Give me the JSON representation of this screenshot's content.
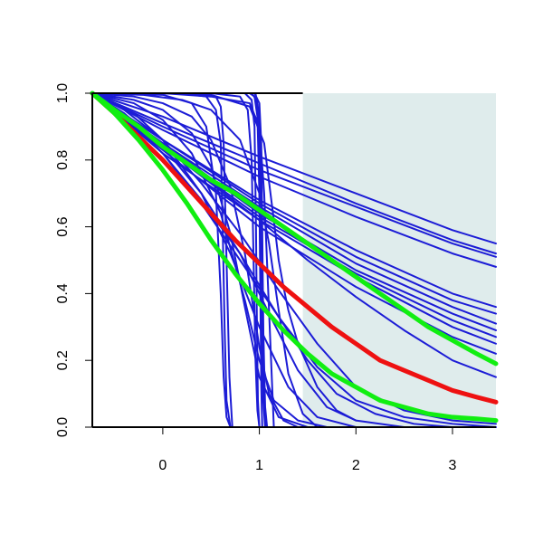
{
  "chart_data": {
    "type": "line",
    "title": "",
    "xlabel": "",
    "ylabel": "",
    "xlim": [
      -0.73,
      3.45
    ],
    "ylim": [
      0,
      1
    ],
    "x_ticks": [
      0,
      1,
      2,
      3
    ],
    "x_tick_labels": [
      "0",
      "1",
      "2",
      "3"
    ],
    "y_ticks": [
      0,
      0.2,
      0.4,
      0.6,
      0.8,
      1
    ],
    "y_tick_labels": [
      "0.0",
      "0.2",
      "0.4",
      "0.6",
      "0.8",
      "1.0"
    ],
    "grid": false,
    "legend": "none",
    "shaded_region": {
      "x": [
        1.45,
        3.45
      ],
      "y": [
        0,
        1
      ],
      "color": "#dfecec"
    },
    "colors": {
      "sample": "#1c1cd6",
      "summary": "#ee1111",
      "band": "#11ee11",
      "axis": "#000000"
    },
    "series": [
      {
        "role": "sample",
        "x": [
          -0.73,
          0.0,
          1.0,
          2.0,
          3.0,
          3.45
        ],
        "y": [
          1.0,
          0.93,
          0.81,
          0.7,
          0.59,
          0.55
        ]
      },
      {
        "role": "sample",
        "x": [
          -0.73,
          0.0,
          1.0,
          2.0,
          3.0,
          3.45
        ],
        "y": [
          1.0,
          0.91,
          0.79,
          0.67,
          0.56,
          0.52
        ]
      },
      {
        "role": "sample",
        "x": [
          -0.73,
          0.0,
          1.0,
          2.0,
          3.0,
          3.45
        ],
        "y": [
          1.0,
          0.9,
          0.77,
          0.66,
          0.55,
          0.51
        ]
      },
      {
        "role": "sample",
        "x": [
          -0.73,
          0.0,
          1.0,
          2.0,
          3.0,
          3.45
        ],
        "y": [
          1.0,
          0.89,
          0.75,
          0.63,
          0.52,
          0.48
        ]
      },
      {
        "role": "sample",
        "x": [
          -0.73,
          0.0,
          1.0,
          2.0,
          3.0,
          3.45
        ],
        "y": [
          1.0,
          0.86,
          0.68,
          0.53,
          0.4,
          0.36
        ]
      },
      {
        "role": "sample",
        "x": [
          -0.73,
          0.0,
          1.0,
          2.0,
          3.0,
          3.45
        ],
        "y": [
          1.0,
          0.86,
          0.67,
          0.51,
          0.38,
          0.34
        ]
      },
      {
        "role": "sample",
        "x": [
          -0.73,
          0.0,
          1.0,
          2.0,
          3.0,
          3.45
        ],
        "y": [
          1.0,
          0.85,
          0.66,
          0.49,
          0.36,
          0.31
        ]
      },
      {
        "role": "sample",
        "x": [
          -0.73,
          0.0,
          1.0,
          2.0,
          3.0,
          3.45
        ],
        "y": [
          1.0,
          0.85,
          0.64,
          0.47,
          0.34,
          0.29
        ]
      },
      {
        "role": "sample",
        "x": [
          -0.73,
          0.0,
          1.0,
          2.0,
          3.0,
          3.45
        ],
        "y": [
          1.0,
          0.84,
          0.63,
          0.46,
          0.32,
          0.27
        ]
      },
      {
        "role": "sample",
        "x": [
          -0.73,
          0.0,
          1.0,
          2.0,
          3.0,
          3.45
        ],
        "y": [
          1.0,
          0.84,
          0.62,
          0.45,
          0.3,
          0.25
        ]
      },
      {
        "role": "sample",
        "x": [
          -0.73,
          0.0,
          1.0,
          2.0,
          3.0,
          3.45
        ],
        "y": [
          1.0,
          0.83,
          0.6,
          0.42,
          0.27,
          0.22
        ]
      },
      {
        "role": "sample",
        "x": [
          -0.73,
          0.0,
          0.5,
          1.0,
          1.5,
          2.0,
          2.5,
          3.0,
          3.45
        ],
        "y": [
          1.0,
          0.82,
          0.72,
          0.62,
          0.5,
          0.39,
          0.29,
          0.2,
          0.15
        ]
      },
      {
        "role": "sample",
        "x": [
          -0.73,
          -0.4,
          0.0,
          0.4,
          0.8,
          1.2,
          1.6,
          2.0,
          2.5,
          3.0,
          3.45
        ],
        "y": [
          1.0,
          0.95,
          0.86,
          0.73,
          0.58,
          0.41,
          0.25,
          0.12,
          0.05,
          0.02,
          0.01
        ]
      },
      {
        "role": "sample",
        "x": [
          -0.73,
          -0.4,
          0.0,
          0.4,
          0.8,
          1.2,
          1.6,
          2.0,
          2.5,
          3.0,
          3.45
        ],
        "y": [
          1.0,
          0.93,
          0.82,
          0.67,
          0.5,
          0.33,
          0.18,
          0.08,
          0.03,
          0.01,
          0.0
        ]
      },
      {
        "role": "sample",
        "x": [
          -0.73,
          -0.4,
          0.0,
          0.4,
          0.8,
          1.2,
          1.5,
          1.8,
          2.2,
          2.6,
          3.0
        ],
        "y": [
          1.0,
          0.93,
          0.82,
          0.68,
          0.52,
          0.33,
          0.2,
          0.1,
          0.04,
          0.01,
          0.0
        ]
      },
      {
        "role": "sample",
        "x": [
          -0.73,
          -0.4,
          0.0,
          0.4,
          0.8,
          1.1,
          1.4,
          1.7,
          2.0,
          2.5
        ],
        "y": [
          1.0,
          0.94,
          0.84,
          0.7,
          0.52,
          0.34,
          0.17,
          0.06,
          0.02,
          0.0
        ]
      },
      {
        "role": "sample",
        "x": [
          -0.73,
          -0.3,
          0.0,
          0.4,
          0.7,
          1.0,
          1.3,
          1.6,
          2.0
        ],
        "y": [
          1.0,
          0.94,
          0.86,
          0.7,
          0.52,
          0.3,
          0.12,
          0.03,
          0.0
        ]
      },
      {
        "role": "sample",
        "x": [
          -0.73,
          -0.3,
          0.0,
          0.3,
          0.6,
          0.85,
          1.0,
          1.15,
          1.4,
          1.7
        ],
        "y": [
          1.0,
          0.97,
          0.92,
          0.82,
          0.64,
          0.38,
          0.2,
          0.08,
          0.02,
          0.0
        ]
      },
      {
        "role": "sample",
        "x": [
          -0.73,
          -0.3,
          0.0,
          0.3,
          0.5,
          0.7,
          0.85,
          1.0,
          1.2,
          1.5
        ],
        "y": [
          1.0,
          0.98,
          0.95,
          0.88,
          0.78,
          0.58,
          0.36,
          0.15,
          0.03,
          0.0
        ]
      },
      {
        "role": "sample",
        "x": [
          -0.73,
          -0.3,
          0.0,
          0.3,
          0.5,
          0.7,
          0.85,
          1.0,
          1.1,
          1.25,
          1.4
        ],
        "y": [
          1.0,
          0.99,
          0.97,
          0.93,
          0.86,
          0.72,
          0.52,
          0.24,
          0.1,
          0.02,
          0.0
        ]
      },
      {
        "role": "sample",
        "x": [
          -0.73,
          -0.2,
          0.2,
          0.5,
          0.8,
          1.0,
          1.1,
          1.2,
          1.3,
          1.45,
          1.6
        ],
        "y": [
          1.0,
          0.995,
          0.98,
          0.95,
          0.86,
          0.7,
          0.55,
          0.35,
          0.16,
          0.04,
          0.0
        ]
      },
      {
        "role": "sample",
        "x": [
          -0.73,
          0.0,
          0.5,
          0.9,
          1.05,
          1.15,
          1.2,
          1.25,
          1.3,
          1.4,
          1.6,
          1.8,
          2.0
        ],
        "y": [
          1.0,
          1.0,
          0.995,
          0.96,
          0.85,
          0.62,
          0.5,
          0.42,
          0.35,
          0.25,
          0.12,
          0.05,
          0.02
        ]
      },
      {
        "role": "sample",
        "x": [
          -0.73,
          0.0,
          0.3,
          0.45,
          0.55,
          0.6,
          0.63,
          0.66,
          0.7
        ],
        "y": [
          1.0,
          0.995,
          0.97,
          0.9,
          0.7,
          0.4,
          0.15,
          0.03,
          0.0
        ]
      },
      {
        "role": "sample",
        "x": [
          -0.73,
          0.2,
          0.45,
          0.55,
          0.6,
          0.62,
          0.64,
          0.66,
          0.7
        ],
        "y": [
          1.0,
          0.999,
          0.99,
          0.95,
          0.85,
          0.6,
          0.3,
          0.08,
          0.0
        ]
      },
      {
        "role": "sample",
        "x": [
          -0.73,
          0.4,
          0.55,
          0.6,
          0.63,
          0.66,
          0.69,
          0.72
        ],
        "y": [
          1.0,
          1.0,
          0.99,
          0.96,
          0.85,
          0.5,
          0.15,
          0.0
        ]
      },
      {
        "role": "sample",
        "x": [
          -0.73,
          0.5,
          0.8,
          0.88,
          0.92,
          0.94,
          0.96,
          0.98,
          1.0
        ],
        "y": [
          1.0,
          1.0,
          0.99,
          0.95,
          0.8,
          0.5,
          0.2,
          0.05,
          0.0
        ]
      },
      {
        "role": "sample",
        "x": [
          -0.73,
          0.85,
          0.92,
          0.95,
          0.965,
          0.975,
          0.985,
          1.0
        ],
        "y": [
          1.0,
          1.0,
          0.98,
          0.9,
          0.6,
          0.3,
          0.08,
          0.0
        ]
      },
      {
        "role": "sample",
        "x": [
          -0.73,
          0.9,
          0.95,
          0.98,
          1.0,
          1.02,
          1.04,
          1.06
        ],
        "y": [
          1.0,
          1.0,
          0.99,
          0.93,
          0.7,
          0.35,
          0.08,
          0.0
        ]
      },
      {
        "role": "sample",
        "x": [
          -0.73,
          0.92,
          0.97,
          1.0,
          1.02,
          1.04,
          1.06,
          1.08
        ],
        "y": [
          1.0,
          1.0,
          0.98,
          0.9,
          0.65,
          0.3,
          0.06,
          0.0
        ]
      },
      {
        "role": "sample",
        "x": [
          -0.73,
          0.95,
          1.0,
          1.02,
          1.03,
          1.04,
          1.05,
          1.07
        ],
        "y": [
          1.0,
          1.0,
          0.97,
          0.85,
          0.6,
          0.3,
          0.08,
          0.0
        ]
      },
      {
        "role": "sample",
        "x": [
          -0.73,
          0.96,
          0.99,
          1.0,
          1.01,
          1.02,
          1.03
        ],
        "y": [
          1.0,
          1.0,
          0.95,
          0.7,
          0.4,
          0.12,
          0.0
        ]
      },
      {
        "role": "sample",
        "x": [
          -0.73,
          0.0,
          0.5,
          0.9,
          1.0,
          1.05,
          1.1,
          1.15
        ],
        "y": [
          1.0,
          1.0,
          0.99,
          0.97,
          0.9,
          0.7,
          0.35,
          0.0
        ]
      },
      {
        "role": "summary",
        "x": [
          -0.73,
          -0.5,
          -0.25,
          0.0,
          0.25,
          0.5,
          0.75,
          1.0,
          1.25,
          1.5,
          1.75,
          2.0,
          2.25,
          2.5,
          2.75,
          3.0,
          3.25,
          3.45
        ],
        "y": [
          1.0,
          0.94,
          0.87,
          0.8,
          0.72,
          0.64,
          0.56,
          0.49,
          0.42,
          0.36,
          0.3,
          0.25,
          0.2,
          0.17,
          0.14,
          0.11,
          0.09,
          0.075
        ]
      },
      {
        "role": "band",
        "x": [
          -0.73,
          -0.5,
          -0.25,
          0.0,
          0.25,
          0.5,
          0.75,
          1.0,
          1.25,
          1.5,
          1.75,
          2.0,
          2.25,
          2.5,
          2.75,
          3.0,
          3.25,
          3.45
        ],
        "y": [
          1.0,
          0.95,
          0.9,
          0.84,
          0.79,
          0.74,
          0.7,
          0.65,
          0.6,
          0.55,
          0.5,
          0.45,
          0.4,
          0.35,
          0.3,
          0.26,
          0.22,
          0.19
        ]
      },
      {
        "role": "band",
        "x": [
          -0.73,
          -0.5,
          -0.25,
          0.0,
          0.25,
          0.5,
          0.75,
          1.0,
          1.25,
          1.5,
          1.75,
          2.0,
          2.25,
          2.5,
          2.75,
          3.0,
          3.25,
          3.45
        ],
        "y": [
          1.0,
          0.94,
          0.86,
          0.77,
          0.67,
          0.56,
          0.46,
          0.37,
          0.29,
          0.22,
          0.16,
          0.12,
          0.08,
          0.06,
          0.04,
          0.03,
          0.025,
          0.02
        ]
      }
    ]
  }
}
